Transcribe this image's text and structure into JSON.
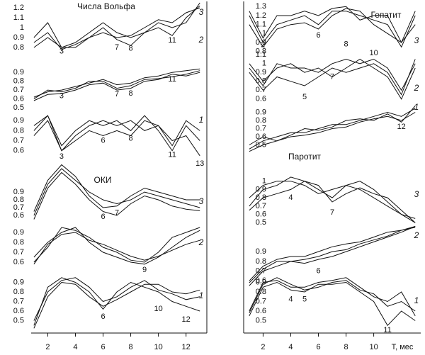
{
  "chart_data": [
    {
      "type": "line",
      "title": "Числа Вольфа",
      "label": "3",
      "x": [
        1,
        2,
        3,
        4,
        5,
        6,
        7,
        8,
        9,
        10,
        11,
        12,
        13
      ],
      "xlim": [
        0.8,
        13.4
      ],
      "ylim": [
        0.75,
        1.25
      ],
      "yticks": [
        0.8,
        0.9,
        1,
        1.1,
        1.2
      ],
      "series": [
        {
          "color": "#111111",
          "values": [
            0.9,
            1.05,
            0.8,
            0.85,
            0.95,
            1.05,
            0.95,
            0.9,
            0.95,
            1.05,
            1.0,
            1.05,
            1.25
          ]
        },
        {
          "color": "#111111",
          "values": [
            0.85,
            0.95,
            0.78,
            0.83,
            0.9,
            1.0,
            0.88,
            0.82,
            0.95,
            1.0,
            0.92,
            1.1,
            1.22
          ]
        },
        {
          "color": "#111111",
          "values": [
            0.8,
            0.9,
            0.8,
            0.8,
            0.9,
            0.95,
            0.9,
            0.92,
            1.0,
            1.08,
            1.05,
            1.15,
            1.2
          ]
        }
      ],
      "annotations": [
        {
          "text": "3",
          "x": 3,
          "y": 0.76
        },
        {
          "text": "7",
          "x": 7,
          "y": 0.8
        },
        {
          "text": "8",
          "x": 8,
          "y": 0.79
        },
        {
          "text": "11",
          "x": 11,
          "y": 0.87
        }
      ]
    },
    {
      "type": "line",
      "label": "2",
      "x": [
        1,
        2,
        3,
        4,
        5,
        6,
        7,
        8,
        9,
        10,
        11,
        12,
        13
      ],
      "xlim": [
        0.8,
        13.4
      ],
      "ylim": [
        0.5,
        0.95
      ],
      "yticks": [
        0.5,
        0.6,
        0.7,
        0.8,
        0.9
      ],
      "series": [
        {
          "color": "#111111",
          "values": [
            0.6,
            0.7,
            0.68,
            0.72,
            0.8,
            0.8,
            0.72,
            0.75,
            0.82,
            0.83,
            0.85,
            0.88,
            0.92
          ]
        },
        {
          "color": "#111111",
          "values": [
            0.58,
            0.65,
            0.66,
            0.7,
            0.76,
            0.78,
            0.7,
            0.72,
            0.8,
            0.82,
            0.88,
            0.86,
            0.9
          ]
        },
        {
          "color": "#111111",
          "values": [
            0.62,
            0.68,
            0.7,
            0.74,
            0.78,
            0.82,
            0.76,
            0.78,
            0.84,
            0.86,
            0.9,
            0.92,
            0.94
          ]
        }
      ],
      "annotations": [
        {
          "text": "3",
          "x": 3,
          "y": 0.63
        },
        {
          "text": "7",
          "x": 7,
          "y": 0.65
        },
        {
          "text": "8",
          "x": 8,
          "y": 0.66
        },
        {
          "text": "11",
          "x": 11,
          "y": 0.82
        }
      ]
    },
    {
      "type": "line",
      "label": "1",
      "x": [
        1,
        2,
        3,
        4,
        5,
        6,
        7,
        8,
        9,
        10,
        11,
        12,
        13
      ],
      "xlim": [
        0.8,
        13.4
      ],
      "ylim": [
        0.45,
        1.0
      ],
      "yticks": [
        0.6,
        0.7,
        0.8,
        0.9
      ],
      "series": [
        {
          "color": "#111111",
          "values": [
            0.85,
            0.95,
            0.6,
            0.75,
            0.85,
            0.9,
            0.85,
            0.9,
            0.8,
            0.85,
            0.65,
            0.9,
            0.8
          ]
        },
        {
          "color": "#111111",
          "values": [
            0.8,
            0.95,
            0.65,
            0.8,
            0.9,
            0.85,
            0.9,
            0.8,
            0.95,
            0.8,
            0.6,
            0.85,
            0.7
          ]
        },
        {
          "color": "#111111",
          "values": [
            0.75,
            0.9,
            0.6,
            0.7,
            0.8,
            0.75,
            0.8,
            0.75,
            0.9,
            0.85,
            0.7,
            0.75,
            0.55
          ]
        }
      ],
      "annotations": [
        {
          "text": "3",
          "x": 3,
          "y": 0.54
        },
        {
          "text": "6",
          "x": 6,
          "y": 0.7
        },
        {
          "text": "8",
          "x": 8,
          "y": 0.72
        },
        {
          "text": "11",
          "x": 11,
          "y": 0.56
        },
        {
          "text": "13",
          "x": 13,
          "y": 0.47
        }
      ]
    },
    {
      "type": "line",
      "title": "ОКИ",
      "label": "3",
      "x": [
        1,
        2,
        3,
        4,
        5,
        6,
        7,
        8,
        9,
        10,
        11,
        12,
        13
      ],
      "xlim": [
        0.8,
        13.4
      ],
      "ylim": [
        0.5,
        1.3
      ],
      "yticks": [
        0.6,
        0.7,
        0.8,
        0.9
      ],
      "series": [
        {
          "color": "#111111",
          "values": [
            0.6,
            1.0,
            1.2,
            1.05,
            0.9,
            0.8,
            0.75,
            0.8,
            0.9,
            0.85,
            0.8,
            0.75,
            0.7
          ]
        },
        {
          "color": "#111111",
          "values": [
            0.65,
            1.05,
            1.25,
            1.1,
            0.85,
            0.7,
            0.72,
            0.85,
            0.95,
            0.9,
            0.85,
            0.8,
            0.8
          ]
        },
        {
          "color": "#111111",
          "values": [
            0.55,
            0.95,
            1.15,
            1.0,
            0.8,
            0.65,
            0.6,
            0.75,
            0.85,
            0.8,
            0.72,
            0.68,
            0.66
          ]
        }
      ],
      "annotations": [
        {
          "text": "6",
          "x": 6,
          "y": 0.58
        },
        {
          "text": "7",
          "x": 7,
          "y": 0.63
        }
      ]
    },
    {
      "type": "line",
      "label": "2",
      "x": [
        1,
        2,
        3,
        4,
        5,
        6,
        7,
        8,
        9,
        10,
        11,
        12,
        13
      ],
      "xlim": [
        0.8,
        13.4
      ],
      "ylim": [
        0.5,
        1.0
      ],
      "yticks": [
        0.6,
        0.7,
        0.8,
        0.9
      ],
      "series": [
        {
          "color": "#111111",
          "values": [
            0.6,
            0.75,
            0.95,
            0.92,
            0.85,
            0.75,
            0.7,
            0.62,
            0.6,
            0.7,
            0.85,
            0.9,
            0.95
          ]
        },
        {
          "color": "#111111",
          "values": [
            0.65,
            0.8,
            0.9,
            0.95,
            0.8,
            0.7,
            0.65,
            0.6,
            0.58,
            0.65,
            0.75,
            0.85,
            0.92
          ]
        },
        {
          "color": "#111111",
          "values": [
            0.58,
            0.78,
            0.88,
            0.9,
            0.82,
            0.78,
            0.72,
            0.66,
            0.62,
            0.66,
            0.72,
            0.78,
            0.82
          ]
        }
      ],
      "annotations": [
        {
          "text": "9",
          "x": 9,
          "y": 0.52
        }
      ]
    },
    {
      "type": "line",
      "label": "1",
      "x": [
        1,
        2,
        3,
        4,
        5,
        6,
        7,
        8,
        9,
        10,
        11,
        12,
        13
      ],
      "xlim": [
        0.8,
        13.4
      ],
      "ylim": [
        0.4,
        1.0
      ],
      "yticks": [
        0.5,
        0.6,
        0.7,
        0.8,
        0.9
      ],
      "xticks": [
        2,
        4,
        6,
        8,
        10,
        12
      ],
      "series": [
        {
          "color": "#111111",
          "values": [
            0.45,
            0.85,
            0.95,
            0.9,
            0.8,
            0.62,
            0.8,
            0.9,
            0.85,
            0.8,
            0.7,
            0.65,
            0.6
          ]
        },
        {
          "color": "#111111",
          "values": [
            0.5,
            0.8,
            0.92,
            0.95,
            0.85,
            0.7,
            0.75,
            0.85,
            0.92,
            0.82,
            0.78,
            0.72,
            0.75
          ]
        },
        {
          "color": "#111111",
          "values": [
            0.42,
            0.75,
            0.9,
            0.88,
            0.75,
            0.65,
            0.72,
            0.8,
            0.88,
            0.88,
            0.8,
            0.78,
            0.82
          ]
        }
      ],
      "annotations": [
        {
          "text": "6",
          "x": 6,
          "y": 0.54
        },
        {
          "text": "10",
          "x": 10,
          "y": 0.62
        },
        {
          "text": "12",
          "x": 12,
          "y": 0.51
        }
      ]
    },
    {
      "type": "line",
      "title": "Гепатит",
      "label": "3",
      "x": [
        1,
        2,
        3,
        4,
        5,
        6,
        7,
        8,
        9,
        10,
        11,
        12,
        13
      ],
      "xlim": [
        0.8,
        13.4
      ],
      "ylim": [
        0.75,
        1.35
      ],
      "yticks": [
        0.8,
        0.9,
        1,
        1.1,
        1.2,
        1.3
      ],
      "series": [
        {
          "color": "#111111",
          "values": [
            1.25,
            0.95,
            1.2,
            1.2,
            1.25,
            1.2,
            1.28,
            1.3,
            1.15,
            1.2,
            1.2,
            0.9,
            1.1
          ]
        },
        {
          "color": "#111111",
          "values": [
            1.2,
            0.9,
            1.1,
            1.15,
            1.2,
            1.1,
            1.25,
            1.25,
            1.2,
            1.15,
            1.1,
            0.85,
            1.2
          ]
        },
        {
          "color": "#111111",
          "values": [
            1.1,
            0.85,
            1.05,
            1.1,
            1.12,
            1.05,
            1.2,
            1.28,
            1.25,
            1.1,
            1.0,
            0.9,
            1.25
          ]
        }
      ],
      "annotations": [
        {
          "text": "2",
          "x": 2,
          "y": 0.87
        },
        {
          "text": "6",
          "x": 6,
          "y": 0.98
        },
        {
          "text": "8",
          "x": 8,
          "y": 0.88
        },
        {
          "text": "10",
          "x": 10,
          "y": 0.78
        }
      ]
    },
    {
      "type": "line",
      "label": "2",
      "x": [
        1,
        2,
        3,
        4,
        5,
        6,
        7,
        8,
        9,
        10,
        11,
        12,
        13
      ],
      "xlim": [
        0.8,
        13.4
      ],
      "ylim": [
        0.55,
        1.15
      ],
      "yticks": [
        0.6,
        0.7,
        0.8,
        0.9,
        1,
        1.1
      ],
      "series": [
        {
          "color": "#111111",
          "values": [
            0.95,
            0.75,
            1.0,
            0.95,
            0.95,
            0.9,
            1.0,
            1.05,
            1.0,
            1.05,
            0.95,
            0.7,
            1.0
          ]
        },
        {
          "color": "#111111",
          "values": [
            0.9,
            0.7,
            0.85,
            0.8,
            0.75,
            0.85,
            0.95,
            0.9,
            0.95,
            1.0,
            0.9,
            0.65,
            1.05
          ]
        },
        {
          "color": "#111111",
          "values": [
            1.0,
            0.8,
            0.95,
            1.0,
            0.9,
            0.95,
            0.85,
            0.95,
            1.05,
            0.95,
            0.85,
            0.6,
            0.95
          ]
        }
      ],
      "annotations": [
        {
          "text": "5",
          "x": 5,
          "y": 0.62
        },
        {
          "text": "7",
          "x": 7,
          "y": 0.85
        }
      ]
    },
    {
      "type": "line",
      "label": "1",
      "x": [
        1,
        2,
        3,
        4,
        5,
        6,
        7,
        8,
        9,
        10,
        11,
        12,
        13
      ],
      "xlim": [
        0.8,
        13.4
      ],
      "ylim": [
        0.4,
        1.0
      ],
      "yticks": [
        0.5,
        0.6,
        0.7,
        0.8,
        0.9
      ],
      "series": [
        {
          "color": "#111111",
          "values": [
            0.45,
            0.55,
            0.6,
            0.65,
            0.65,
            0.7,
            0.75,
            0.75,
            0.8,
            0.85,
            0.9,
            0.85,
            0.95
          ]
        },
        {
          "color": "#111111",
          "values": [
            0.42,
            0.5,
            0.55,
            0.6,
            0.62,
            0.65,
            0.7,
            0.72,
            0.78,
            0.82,
            0.85,
            0.8,
            0.9
          ]
        },
        {
          "color": "#111111",
          "values": [
            0.5,
            0.6,
            0.55,
            0.62,
            0.7,
            0.68,
            0.72,
            0.8,
            0.82,
            0.8,
            0.88,
            0.78,
            0.98
          ]
        }
      ],
      "annotations": [
        {
          "text": "12",
          "x": 12,
          "y": 0.72
        }
      ]
    },
    {
      "type": "line",
      "title": "Паротит",
      "label": "3",
      "x": [
        1,
        2,
        3,
        4,
        5,
        6,
        7,
        8,
        9,
        10,
        11,
        12,
        13
      ],
      "xlim": [
        0.8,
        13.4
      ],
      "ylim": [
        0.4,
        1.1
      ],
      "yticks": [
        0.5,
        0.6,
        0.7,
        0.8,
        0.9,
        1
      ],
      "series": [
        {
          "color": "#111111",
          "values": [
            0.7,
            0.9,
            0.95,
            1.05,
            1.0,
            0.9,
            0.8,
            0.95,
            1.0,
            0.9,
            0.75,
            0.6,
            0.5
          ]
        },
        {
          "color": "#111111",
          "values": [
            0.8,
            0.95,
            1.0,
            1.0,
            0.95,
            0.85,
            0.9,
            0.95,
            0.9,
            0.8,
            0.7,
            0.6,
            0.55
          ]
        },
        {
          "color": "#111111",
          "values": [
            0.65,
            0.8,
            0.85,
            0.9,
            1.0,
            0.95,
            0.75,
            0.85,
            0.92,
            0.85,
            0.8,
            0.65,
            0.5
          ]
        }
      ],
      "annotations": [
        {
          "text": "4",
          "x": 4,
          "y": 0.8
        },
        {
          "text": "7",
          "x": 7,
          "y": 0.62
        }
      ]
    },
    {
      "type": "line",
      "label": "2",
      "x": [
        1,
        2,
        3,
        4,
        5,
        6,
        7,
        8,
        9,
        10,
        11,
        12,
        13
      ],
      "xlim": [
        0.8,
        13.4
      ],
      "ylim": [
        0.5,
        1.2
      ],
      "yticks": [
        0.6,
        0.7,
        0.8,
        0.9
      ],
      "series": [
        {
          "color": "#111111",
          "values": [
            0.6,
            0.75,
            0.82,
            0.85,
            0.85,
            0.9,
            0.95,
            0.98,
            1.0,
            1.05,
            1.1,
            1.12,
            1.16
          ]
        },
        {
          "color": "#111111",
          "values": [
            0.55,
            0.7,
            0.75,
            0.8,
            0.78,
            0.82,
            0.85,
            0.9,
            0.95,
            1.0,
            1.05,
            1.1,
            1.16
          ]
        },
        {
          "color": "#111111",
          "values": [
            0.58,
            0.72,
            0.8,
            0.8,
            0.82,
            0.85,
            0.9,
            0.92,
            0.98,
            1.02,
            1.06,
            1.12,
            1.15
          ]
        }
      ],
      "annotations": [
        {
          "text": "6",
          "x": 6,
          "y": 0.7
        }
      ]
    },
    {
      "type": "line",
      "label": "1",
      "x": [
        1,
        2,
        3,
        4,
        5,
        6,
        7,
        8,
        9,
        10,
        11,
        12,
        13
      ],
      "xlim": [
        0.8,
        13.4
      ],
      "ylim": [
        0.4,
        1.0
      ],
      "yticks": [
        0.5,
        0.6,
        0.7,
        0.8,
        0.9
      ],
      "xticks": [
        2,
        4,
        6,
        8,
        10
      ],
      "xlabel": "T, мес",
      "series": [
        {
          "color": "#111111",
          "values": [
            0.6,
            0.9,
            0.92,
            0.85,
            0.85,
            0.9,
            0.92,
            0.95,
            0.85,
            0.75,
            0.7,
            0.8,
            0.55
          ]
        },
        {
          "color": "#111111",
          "values": [
            0.55,
            0.85,
            0.9,
            0.82,
            0.8,
            0.88,
            0.88,
            0.9,
            0.8,
            0.7,
            0.45,
            0.6,
            0.5
          ]
        },
        {
          "color": "#111111",
          "values": [
            0.58,
            0.88,
            0.95,
            0.88,
            0.82,
            0.85,
            0.9,
            0.92,
            0.82,
            0.78,
            0.65,
            0.7,
            0.6
          ]
        }
      ],
      "annotations": [
        {
          "text": "4",
          "x": 4,
          "y": 0.72
        },
        {
          "text": "5",
          "x": 5,
          "y": 0.72
        },
        {
          "text": "11",
          "x": 11,
          "y": 0.4
        }
      ]
    }
  ]
}
